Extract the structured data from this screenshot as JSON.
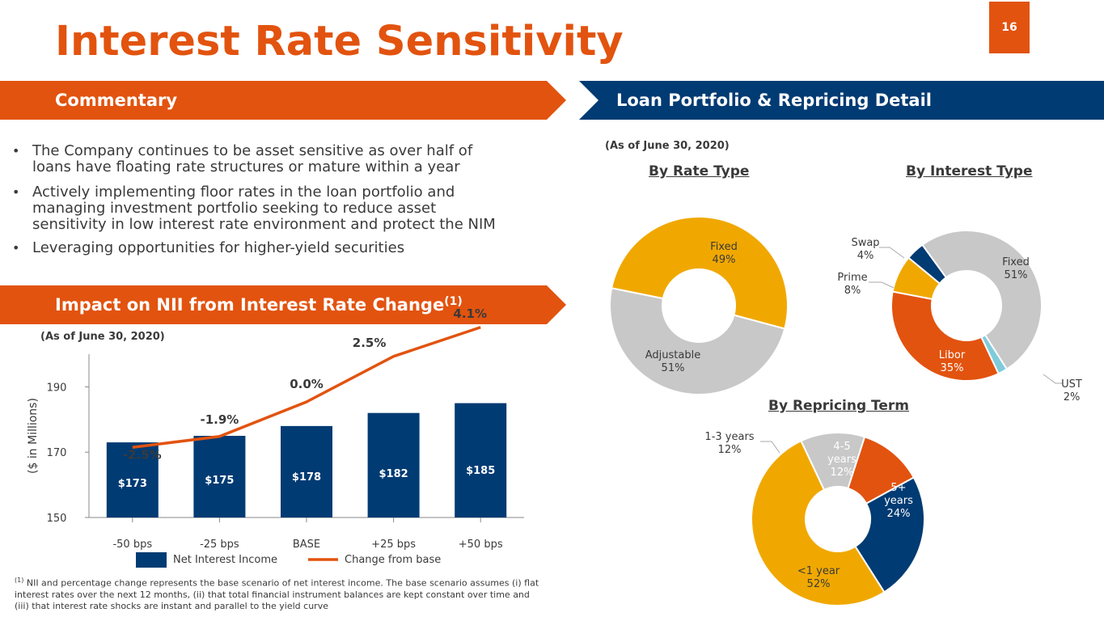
{
  "page_number": "16",
  "title": "Interest Rate Sensitivity",
  "commentary": {
    "header": "Commentary",
    "bullets": [
      {
        "line1": "The Company continues to be asset sensitive as over half of",
        "line2": "loans have floating rate structures or mature within a year"
      },
      {
        "line1": "Actively implementing floor rates in the loan portfolio and",
        "line2": "managing investment portfolio seeking to reduce asset",
        "line3": "sensitivity in low interest rate environment and protect the NIM"
      },
      {
        "line1": "Leveraging opportunities for higher-yield securities"
      }
    ]
  },
  "nii": {
    "header": "Impact on NII from Interest Rate Change",
    "header_sup": "(1)",
    "as_of": "(As of June 30, 2020)"
  },
  "loan": {
    "header": "Loan Portfolio & Repricing Detail",
    "as_of": "(As of June 30, 2020)",
    "rate_type_title": "By Rate Type",
    "interest_type_title": "By Interest Type",
    "repricing_title": "By Repricing Term"
  },
  "footnote": {
    "sup": "(1)",
    "line1": " NII and percentage change represents the base scenario of  net interest income. The base scenario assumes (i) flat",
    "line2": "interest rates over the next 12 months, (ii) that total financial instrument balances are kept constant over time and",
    "line3": "(iii) that interest rate shocks are instant and parallel to the yield curve"
  },
  "colors": {
    "orange": "#e2530f",
    "navy": "#003b73",
    "gold": "#f0a800",
    "gray": "#c8c8c8",
    "light_blue": "#7ecbdc"
  },
  "chart_data": [
    {
      "type": "bar",
      "categories": [
        "-50 bps",
        "-25 bps",
        "BASE",
        "+25 bps",
        "+50 bps"
      ],
      "ylabel": "($ in Millions)",
      "ylim": [
        150,
        200
      ],
      "yticks": [
        150,
        170,
        190
      ],
      "series": [
        {
          "name": "Net Interest Income",
          "values": [
            173,
            175,
            178,
            182,
            185
          ],
          "labels": [
            "$173",
            "$175",
            "$178",
            "$182",
            "$185"
          ],
          "color": "#003b73"
        },
        {
          "name": "Change from base",
          "type": "line",
          "values": [
            -2.5,
            -1.9,
            0.0,
            2.5,
            4.1
          ],
          "labels": [
            "-2.5%",
            "-1.9%",
            "0.0%",
            "2.5%",
            "4.1%"
          ],
          "color": "#e2530f"
        }
      ],
      "legend": "bottom"
    },
    {
      "type": "pie",
      "title": "By Rate Type",
      "slices": [
        {
          "label": "Fixed",
          "value": 49,
          "text": "49%",
          "color": "#c8c8c8"
        },
        {
          "label": "Adjustable",
          "value": 51,
          "text": "51%",
          "color": "#f0a800"
        }
      ]
    },
    {
      "type": "pie",
      "title": "By Interest Type",
      "slices": [
        {
          "label": "Fixed",
          "value": 51,
          "text": "51%",
          "color": "#c8c8c8"
        },
        {
          "label": "UST",
          "value": 2,
          "text": "2%",
          "color": "#7ecbdc"
        },
        {
          "label": "Libor",
          "value": 35,
          "text": "35%",
          "color": "#e2530f"
        },
        {
          "label": "Prime",
          "value": 8,
          "text": "8%",
          "color": "#f0a800"
        },
        {
          "label": "Swap",
          "value": 4,
          "text": "4%",
          "color": "#003b73"
        }
      ]
    },
    {
      "type": "pie",
      "title": "By Repricing Term",
      "slices": [
        {
          "label": "4-5 years",
          "value": 12,
          "text": "12%",
          "color": "#e2530f"
        },
        {
          "label": "5+ years",
          "value": 24,
          "text": "24%",
          "color": "#003b73"
        },
        {
          "label": "<1 year",
          "value": 52,
          "text": "52%",
          "color": "#f0a800"
        },
        {
          "label": "1-3 years",
          "value": 12,
          "text": "12%",
          "color": "#c8c8c8"
        }
      ]
    }
  ]
}
